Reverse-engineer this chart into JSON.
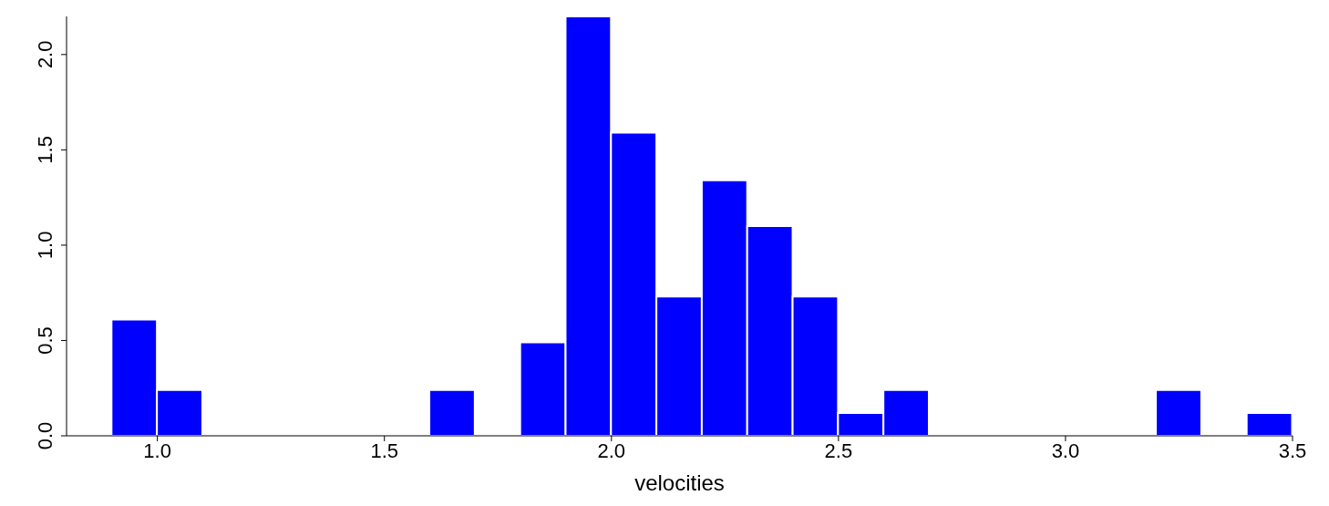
{
  "chart_data": {
    "type": "histogram",
    "xlabel": "velocities",
    "bins": [
      0.9,
      1.0,
      1.1,
      1.2,
      1.3,
      1.4,
      1.5,
      1.6,
      1.7,
      1.8,
      1.9,
      2.0,
      2.1,
      2.2,
      2.3,
      2.4,
      2.5,
      2.6,
      2.7,
      2.8,
      2.9,
      3.0,
      3.1,
      3.2,
      3.3,
      3.4,
      3.5
    ],
    "values": [
      0.61,
      0.24,
      0,
      0,
      0,
      0,
      0,
      0.24,
      0,
      0.49,
      2.2,
      1.59,
      0.73,
      1.34,
      1.1,
      0.73,
      0.12,
      0.24,
      0,
      0,
      0,
      0,
      0,
      0.24,
      0,
      0.12
    ],
    "color": "#0000ff",
    "xlim": [
      0.8,
      3.5
    ],
    "xticks": [
      {
        "value": 1,
        "label": "1.0"
      },
      {
        "value": 1.5,
        "label": "1.5"
      },
      {
        "value": 2,
        "label": "2.0"
      },
      {
        "value": 2.5,
        "label": "2.5"
      },
      {
        "value": 3,
        "label": "3.0"
      },
      {
        "value": 3.5,
        "label": "3.5"
      }
    ],
    "ylim": [
      0,
      2.2
    ],
    "yticks": [
      {
        "value": 0,
        "label": "0.0"
      },
      {
        "value": 0.5,
        "label": "0.5"
      },
      {
        "value": 1,
        "label": "1.0"
      },
      {
        "value": 1.5,
        "label": "1.5"
      },
      {
        "value": 2,
        "label": "2.0"
      }
    ],
    "grid": false
  }
}
